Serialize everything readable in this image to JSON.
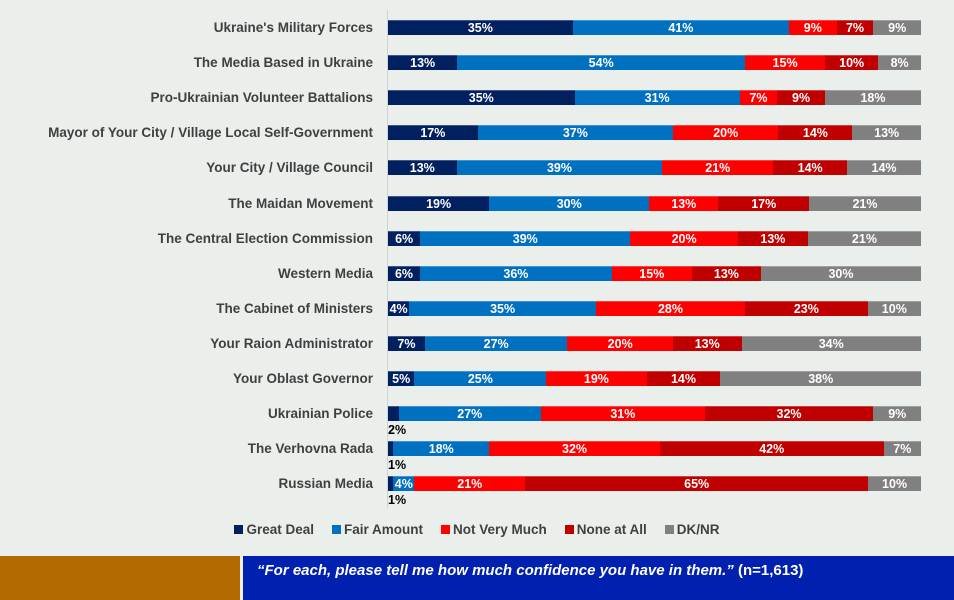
{
  "chart_data": {
    "type": "bar",
    "orientation": "horizontal-stacked-100",
    "categories": [
      "Ukraine's Military Forces",
      "The Media Based in Ukraine",
      "Pro-Ukrainian Volunteer Battalions",
      "Mayor of Your City / Village Local Self-Government",
      "Your City / Village Council",
      "The Maidan Movement",
      "The Central Election Commission",
      "Western Media",
      "The Cabinet of Ministers",
      "Your Raion Administrator",
      "Your Oblast Governor",
      "Ukrainian Police",
      "The Verhovna Rada",
      "Russian Media"
    ],
    "series": [
      {
        "name": "Great Deal",
        "color": "#002060",
        "values": [
          35,
          13,
          35,
          17,
          13,
          19,
          6,
          6,
          4,
          7,
          5,
          2,
          1,
          1
        ]
      },
      {
        "name": "Fair Amount",
        "color": "#0070c0",
        "values": [
          41,
          54,
          31,
          37,
          39,
          30,
          39,
          36,
          35,
          27,
          25,
          27,
          18,
          4
        ]
      },
      {
        "name": "Not Very Much",
        "color": "#ff0000",
        "values": [
          9,
          15,
          7,
          20,
          21,
          13,
          20,
          15,
          28,
          20,
          19,
          31,
          32,
          21
        ]
      },
      {
        "name": "None at All",
        "color": "#c00000",
        "values": [
          7,
          10,
          9,
          14,
          14,
          17,
          13,
          13,
          23,
          13,
          14,
          32,
          42,
          65
        ]
      },
      {
        "name": "DK/NR",
        "color": "#808080",
        "values": [
          9,
          8,
          18,
          13,
          14,
          21,
          21,
          30,
          10,
          34,
          38,
          9,
          7,
          10
        ]
      }
    ],
    "title": "",
    "xlabel": "",
    "ylabel": "",
    "xlim": [
      0,
      100
    ],
    "grid": false,
    "legend": "bottom-center",
    "outside_labels": [
      {
        "category": "Ukrainian Police",
        "series": "Great Deal",
        "text": "2%"
      },
      {
        "category": "The Verhovna Rada",
        "series": "Great Deal",
        "text": "1%"
      },
      {
        "category": "Russian Media",
        "series": "Great Deal",
        "text": "1%"
      }
    ]
  },
  "footer": {
    "question": "“For each, please tell me how much confidence you have in them.”",
    "sample": "(n=1,613)"
  }
}
